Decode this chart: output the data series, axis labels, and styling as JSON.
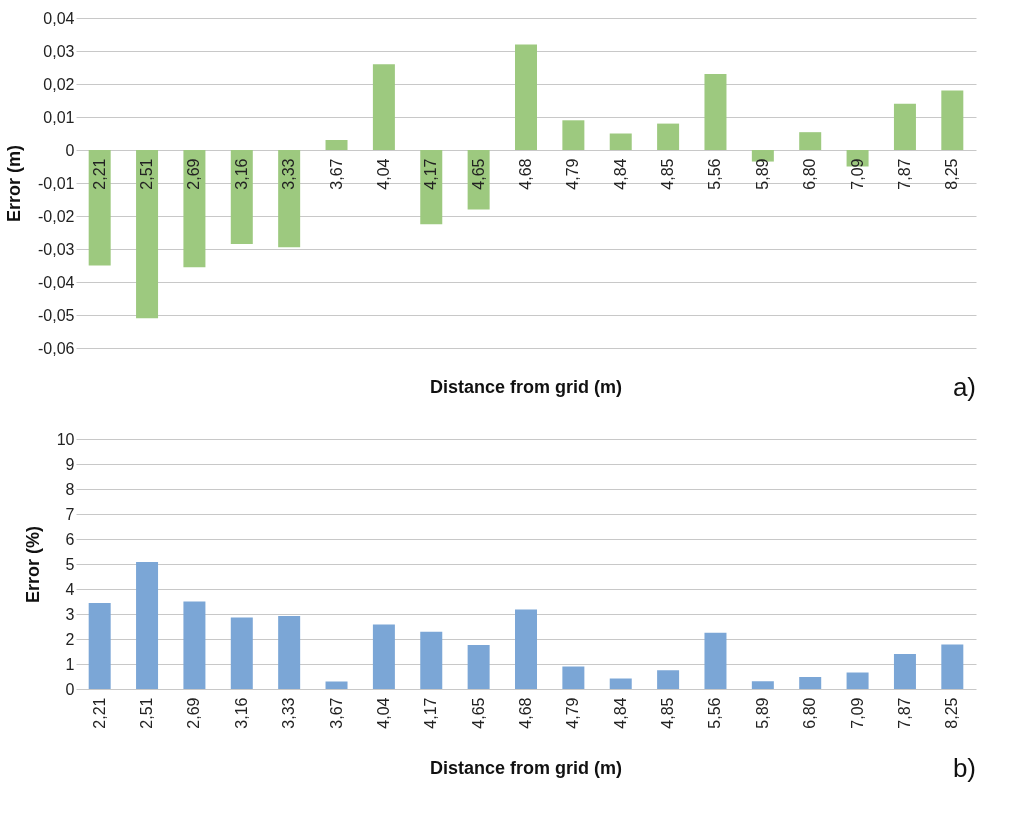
{
  "chart_data": [
    {
      "type": "bar",
      "xlabel": "Distance from grid (m)",
      "ylabel": "Error (m)",
      "annotations": [
        "a)"
      ],
      "categories": [
        "2,21",
        "2,51",
        "2,69",
        "3,16",
        "3,33",
        "3,67",
        "4,04",
        "4,17",
        "4,65",
        "4,68",
        "4,79",
        "4,84",
        "4,85",
        "5,56",
        "5,89",
        "6,80",
        "7,09",
        "7,87",
        "8,25"
      ],
      "values": [
        -0.035,
        -0.051,
        -0.0355,
        -0.0285,
        -0.0295,
        0.003,
        0.026,
        -0.0225,
        -0.018,
        0.032,
        0.009,
        0.005,
        0.008,
        0.023,
        -0.0035,
        0.0054,
        -0.005,
        0.014,
        0.018
      ],
      "color": "#9dc97f",
      "ylim": [
        -0.06,
        0.04
      ],
      "yticks": [
        {
          "value": -0.06,
          "label": "-0,06"
        },
        {
          "value": -0.05,
          "label": "-0,05"
        },
        {
          "value": -0.04,
          "label": "-0,04"
        },
        {
          "value": -0.03,
          "label": "-0,03"
        },
        {
          "value": -0.02,
          "label": "-0,02"
        },
        {
          "value": -0.01,
          "label": "-0,01"
        },
        0,
        {
          "value": 0.01,
          "label": "0,01"
        },
        {
          "value": 0.02,
          "label": "0,02"
        },
        {
          "value": 0.03,
          "label": "0,03"
        },
        {
          "value": 0.04,
          "label": "0,04"
        }
      ],
      "grid": "y"
    },
    {
      "type": "bar",
      "xlabel": "Distance from grid (m)",
      "ylabel": "Error (%)",
      "annotations": [
        "b)"
      ],
      "categories": [
        "2,21",
        "2,51",
        "2,69",
        "3,16",
        "3,33",
        "3,67",
        "4,04",
        "4,17",
        "4,65",
        "4,68",
        "4,79",
        "4,84",
        "4,85",
        "5,56",
        "5,89",
        "6,80",
        "7,09",
        "7,87",
        "8,25"
      ],
      "values": [
        3.44,
        5.08,
        3.5,
        2.86,
        2.92,
        0.3,
        2.58,
        2.29,
        1.76,
        3.18,
        0.9,
        0.42,
        0.75,
        2.25,
        0.31,
        0.48,
        0.66,
        1.4,
        1.78
      ],
      "color": "#7ba6d6",
      "ylim": [
        0,
        10
      ],
      "yticks": [
        0,
        1,
        2,
        3,
        4,
        5,
        6,
        7,
        8,
        9,
        10
      ],
      "grid": "y"
    }
  ]
}
